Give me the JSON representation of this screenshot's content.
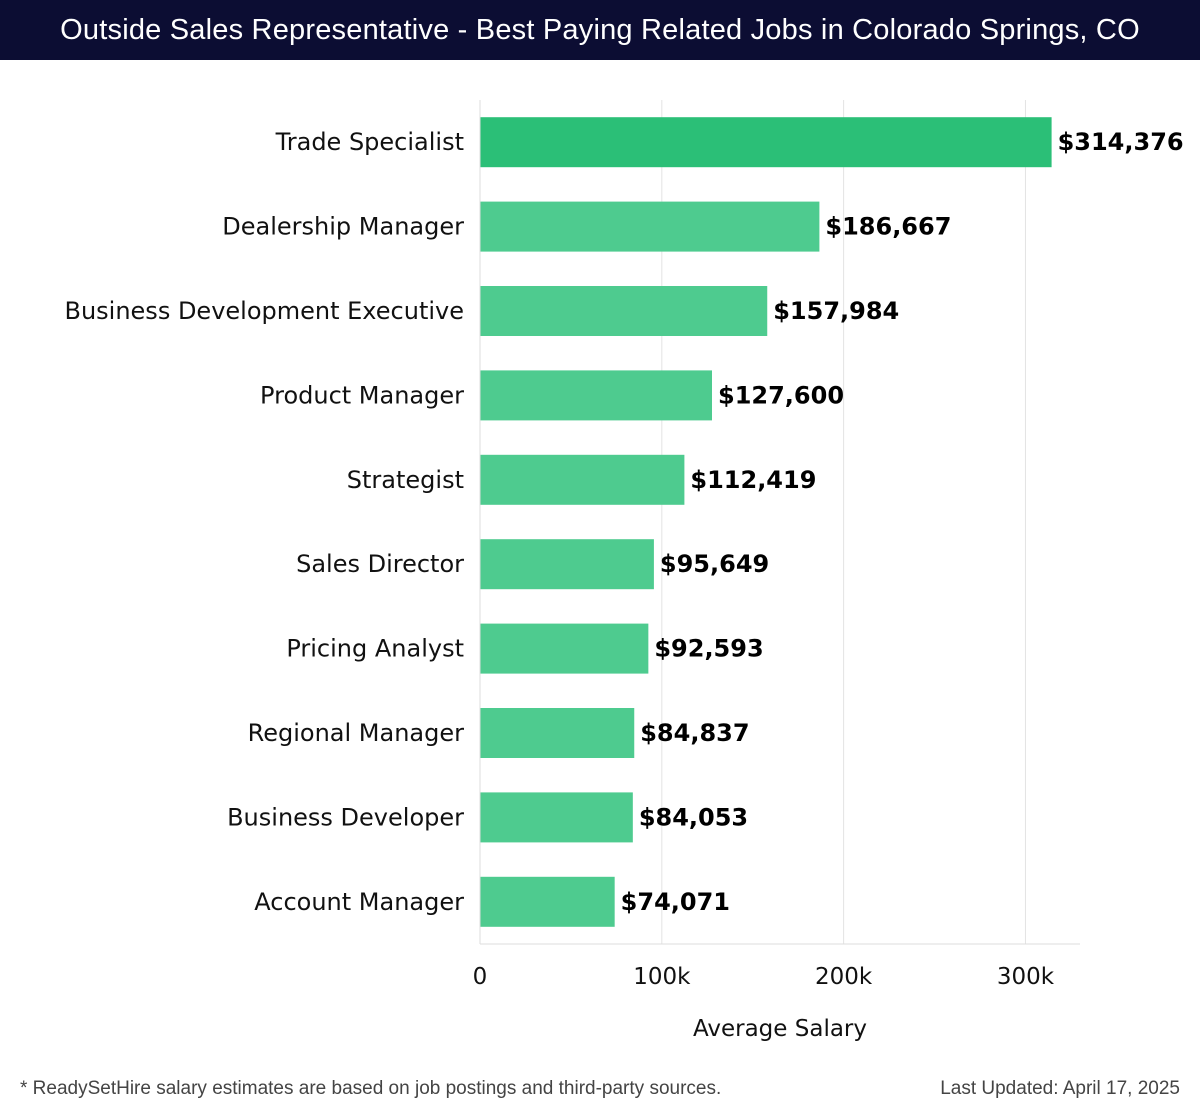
{
  "header": {
    "title": "Outside Sales Representative - Best Paying Related Jobs in Colorado Springs, CO"
  },
  "chart_data": {
    "type": "bar",
    "orientation": "horizontal",
    "title": "Outside Sales Representative - Best Paying Related Jobs in Colorado Springs, CO",
    "xlabel": "Average Salary",
    "ylabel": "",
    "xlim": [
      0,
      330000
    ],
    "xticks": [
      0,
      100000,
      200000,
      300000
    ],
    "xtick_labels": [
      "0",
      "100k",
      "200k",
      "300k"
    ],
    "grid": true,
    "categories": [
      "Trade Specialist",
      "Dealership Manager",
      "Business Development Executive",
      "Product Manager",
      "Strategist",
      "Sales Director",
      "Pricing Analyst",
      "Regional Manager",
      "Business Developer",
      "Account Manager"
    ],
    "values": [
      314376,
      186667,
      157984,
      127600,
      112419,
      95649,
      92593,
      84837,
      84053,
      74071
    ],
    "value_labels": [
      "$314,376",
      "$186,667",
      "$157,984",
      "$127,600",
      "$112,419",
      "$95,649",
      "$92,593",
      "$84,837",
      "$84,053",
      "$74,071"
    ],
    "colors": {
      "top_bar": "#2bbf77",
      "bar": "#4ecb8f",
      "grid": "#e3e3e3"
    }
  },
  "footer": {
    "note": "* ReadySetHire salary estimates are based on job postings and third-party sources.",
    "updated": "Last Updated: April 17, 2025"
  }
}
